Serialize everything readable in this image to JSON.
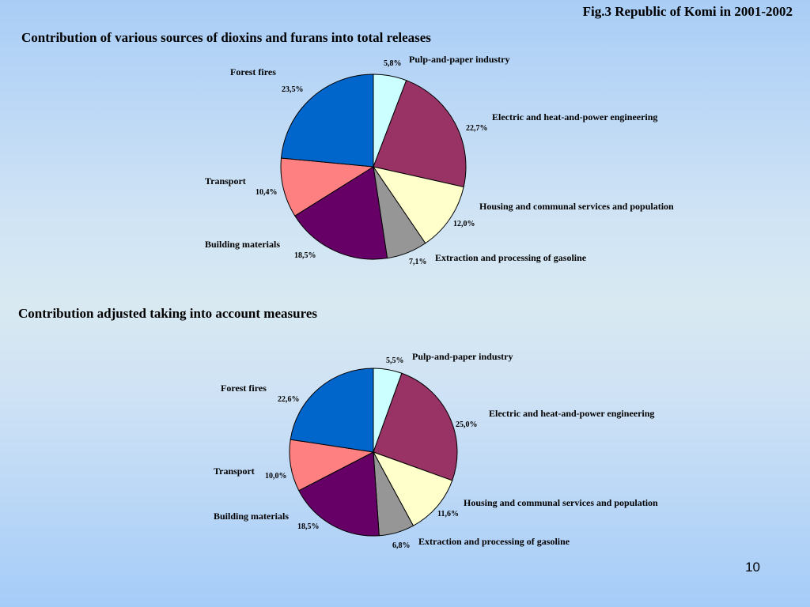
{
  "header": {
    "fig_title": "Fig.3 Republic of Komi in 2001-2002",
    "page_number": "10"
  },
  "chart_data": [
    {
      "type": "pie",
      "title": "Contribution of various sources of dioxins and furans into total releases",
      "categories": [
        "Pulp-and-paper industry",
        "Electric and heat-and-power engineering",
        "Housing and communal services and population",
        "Extraction and processing of gasoline",
        "Building materials",
        "Transport",
        "Forest fires"
      ],
      "values": [
        5.8,
        22.7,
        12.0,
        7.1,
        18.5,
        10.4,
        23.5
      ],
      "value_labels": [
        "5,8%",
        "22,7%",
        "12,0%",
        "7,1%",
        "18,5%",
        "10,4%",
        "23,5%"
      ],
      "colors": [
        "#ccffff",
        "#993366",
        "#ffffcc",
        "#969696",
        "#660066",
        "#ff8080",
        "#0066cc"
      ],
      "legend": "none"
    },
    {
      "type": "pie",
      "title": "Contribution adjusted taking into account measures",
      "categories": [
        "Pulp-and-paper industry",
        "Electric and heat-and-power engineering",
        "Housing and communal services and population",
        "Extraction and processing of gasoline",
        "Building materials",
        "Transport",
        "Forest fires"
      ],
      "values": [
        5.5,
        25.0,
        11.6,
        6.8,
        18.5,
        10.0,
        22.6
      ],
      "value_labels": [
        "5,5%",
        "25,0%",
        "11,6%",
        "6,8%",
        "18,5%",
        "10,0%",
        "22,6%"
      ],
      "colors": [
        "#ccffff",
        "#993366",
        "#ffffcc",
        "#969696",
        "#660066",
        "#ff8080",
        "#0066cc"
      ],
      "legend": "none"
    }
  ]
}
